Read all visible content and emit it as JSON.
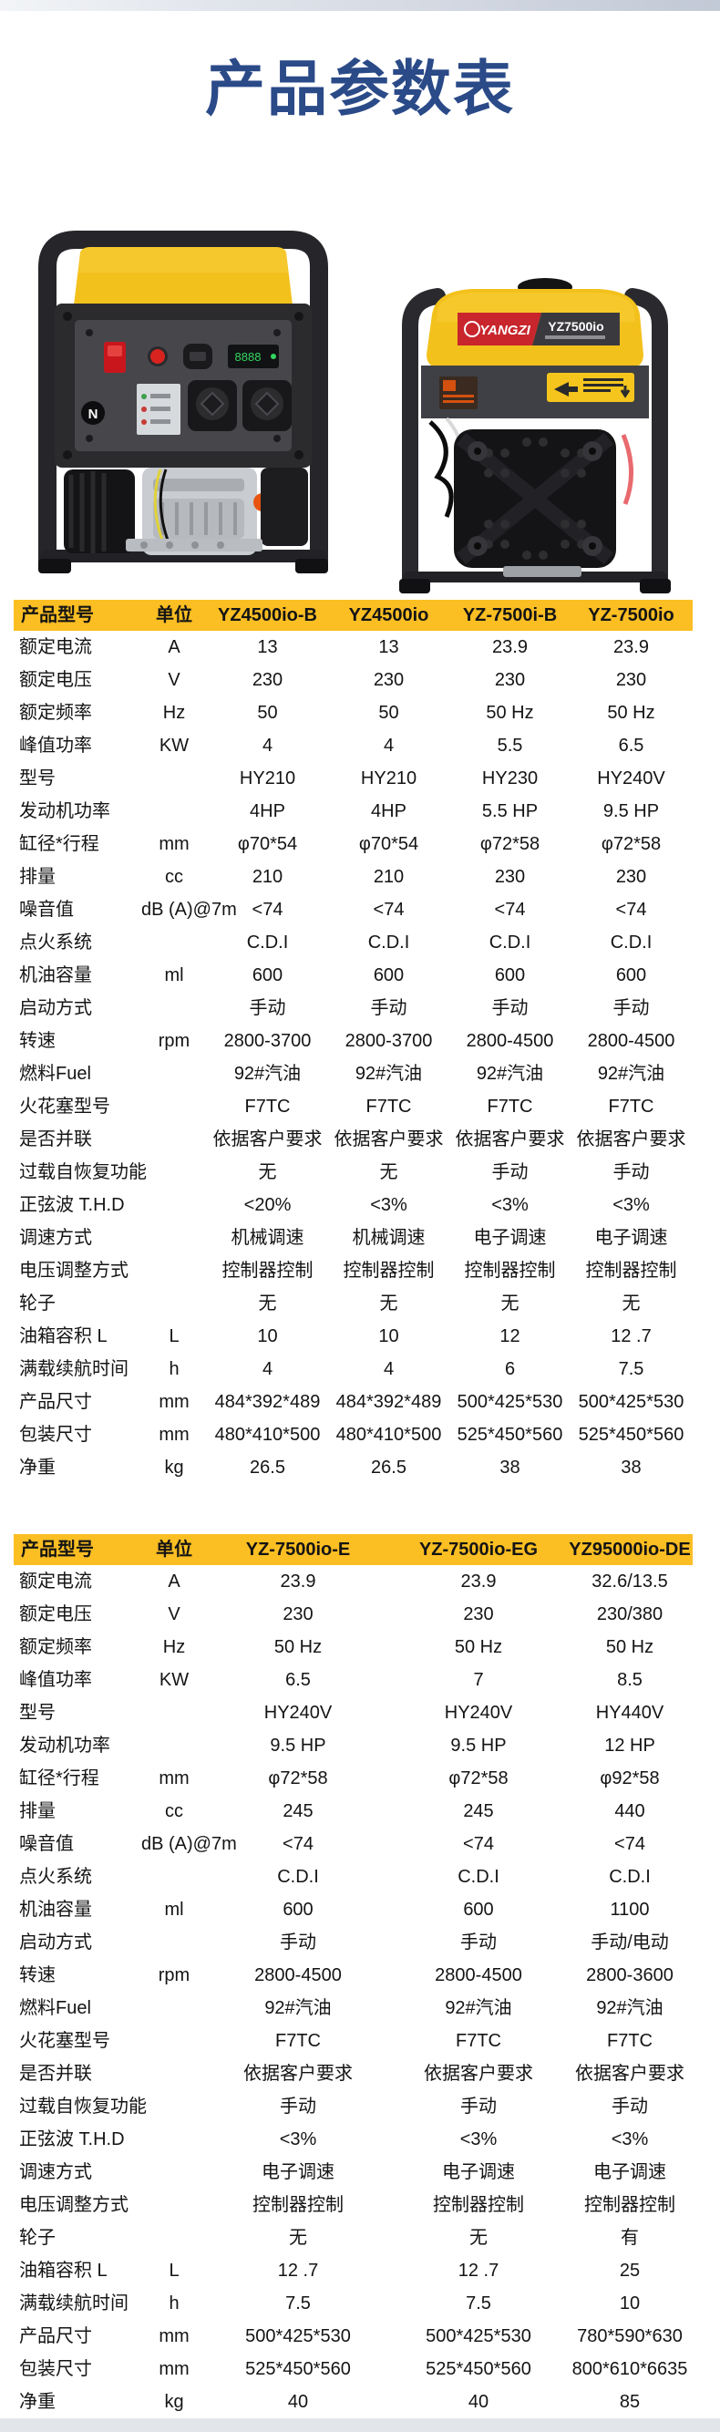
{
  "page": {
    "title": "产品参数表",
    "title_color": "#2a4a88",
    "header_accent_color": "#fbbe23",
    "machine_yellow": "#f3c11c"
  },
  "photos": {
    "front_view_name": "inverter-generator-front",
    "rear_view_name": "inverter-generator-rear",
    "rear_label_brand": "YANGZI",
    "rear_label_model": "YZ7500io",
    "meter_digits": "8888"
  },
  "table1": {
    "headers": [
      "产品型号",
      "单位",
      "YZ4500io-B",
      "YZ4500io",
      "YZ-7500i-B",
      "YZ-7500io"
    ],
    "rows": [
      {
        "label": "额定电流",
        "unit": "A",
        "values": [
          "13",
          "13",
          "23.9",
          "23.9"
        ]
      },
      {
        "label": "额定电压",
        "unit": "V",
        "values": [
          "230",
          "230",
          "230",
          "230"
        ]
      },
      {
        "label": "额定频率",
        "unit": "Hz",
        "values": [
          "50",
          "50",
          "50 Hz",
          "50 Hz"
        ]
      },
      {
        "label": "峰值功率",
        "unit": "KW",
        "values": [
          "4",
          "4",
          "5.5",
          "6.5"
        ]
      },
      {
        "label": "型号",
        "unit": "",
        "values": [
          "HY210",
          "HY210",
          "HY230",
          "HY240V"
        ]
      },
      {
        "label": "发动机功率",
        "unit": "",
        "values": [
          "4HP",
          "4HP",
          "5.5 HP",
          "9.5 HP"
        ]
      },
      {
        "label": "缸径*行程",
        "unit": "mm",
        "values": [
          "φ70*54",
          "φ70*54",
          "φ72*58",
          "φ72*58"
        ]
      },
      {
        "label": "排量",
        "unit": "cc",
        "values": [
          "210",
          "210",
          "230",
          "230"
        ]
      },
      {
        "label": "噪音值",
        "unit": "dB  (A)@7m",
        "values": [
          "<74",
          "<74",
          "<74",
          "<74"
        ]
      },
      {
        "label": "点火系统",
        "unit": "",
        "values": [
          "C.D.I",
          "C.D.I",
          "C.D.I",
          "C.D.I"
        ]
      },
      {
        "label": "机油容量",
        "unit": "ml",
        "values": [
          "600",
          "600",
          "600",
          "600"
        ]
      },
      {
        "label": "启动方式",
        "unit": "",
        "values": [
          "手动",
          "手动",
          "手动",
          "手动"
        ]
      },
      {
        "label": "转速",
        "unit": "rpm",
        "values": [
          "2800-3700",
          "2800-3700",
          "2800-4500",
          "2800-4500"
        ]
      },
      {
        "label": "燃料Fuel",
        "unit": "",
        "values": [
          "92#汽油",
          "92#汽油",
          "92#汽油",
          "92#汽油"
        ]
      },
      {
        "label": "火花塞型号",
        "unit": "",
        "values": [
          "F7TC",
          "F7TC",
          "F7TC",
          "F7TC"
        ]
      },
      {
        "label": "是否并联",
        "unit": "",
        "values": [
          "依据客户要求",
          "依据客户要求",
          "依据客户要求",
          "依据客户要求"
        ]
      },
      {
        "label": "过载自恢复功能",
        "unit": "",
        "values": [
          "无",
          "无",
          "手动",
          "手动"
        ]
      },
      {
        "label": "正弦波 T.H.D",
        "unit": "",
        "values": [
          "<20%",
          "<3%",
          "<3%",
          "<3%"
        ]
      },
      {
        "label": "调速方式",
        "unit": "",
        "values": [
          "机械调速",
          "机械调速",
          "电子调速",
          "电子调速"
        ]
      },
      {
        "label": "电压调整方式",
        "unit": "",
        "values": [
          "控制器控制",
          "控制器控制",
          "控制器控制",
          "控制器控制"
        ]
      },
      {
        "label": "轮子",
        "unit": "",
        "values": [
          "无",
          "无",
          "无",
          "无"
        ]
      },
      {
        "label": "油箱容积 L",
        "unit": "L",
        "values": [
          "10",
          "10",
          "12",
          "12 .7"
        ]
      },
      {
        "label": "满载续航时间",
        "unit": "h",
        "values": [
          "4",
          "4",
          "6",
          "7.5"
        ]
      },
      {
        "label": "产品尺寸",
        "unit": "mm",
        "values": [
          "484*392*489",
          "484*392*489",
          "500*425*530",
          "500*425*530"
        ]
      },
      {
        "label": "包装尺寸",
        "unit": "mm",
        "values": [
          "480*410*500",
          "480*410*500",
          "525*450*560",
          "525*450*560"
        ]
      },
      {
        "label": "净重",
        "unit": "kg",
        "values": [
          "26.5",
          "26.5",
          "38",
          "38"
        ]
      }
    ]
  },
  "table2": {
    "headers": [
      "产品型号",
      "单位",
      "YZ-7500io-E",
      "YZ-7500io-EG",
      "YZ95000io-DE"
    ],
    "rows": [
      {
        "label": "额定电流",
        "unit": "A",
        "values": [
          "23.9",
          "23.9",
          "32.6/13.5"
        ]
      },
      {
        "label": "额定电压",
        "unit": "V",
        "values": [
          "230",
          "230",
          "230/380"
        ]
      },
      {
        "label": "额定频率",
        "unit": "Hz",
        "values": [
          "50 Hz",
          "50 Hz",
          "50 Hz"
        ]
      },
      {
        "label": "峰值功率",
        "unit": "KW",
        "values": [
          "6.5",
          "7",
          "8.5"
        ]
      },
      {
        "label": "型号",
        "unit": "",
        "values": [
          "HY240V",
          "HY240V",
          "HY440V"
        ]
      },
      {
        "label": "发动机功率",
        "unit": "",
        "values": [
          "9.5 HP",
          "9.5 HP",
          "12 HP"
        ]
      },
      {
        "label": "缸径*行程",
        "unit": "mm",
        "values": [
          "φ72*58",
          "φ72*58",
          "φ92*58"
        ]
      },
      {
        "label": "排量",
        "unit": "cc",
        "values": [
          "245",
          "245",
          "440"
        ]
      },
      {
        "label": "噪音值",
        "unit": "dB  (A)@7m",
        "values": [
          "<74",
          "<74",
          "<74"
        ]
      },
      {
        "label": "点火系统",
        "unit": "",
        "values": [
          "C.D.I",
          "C.D.I",
          "C.D.I"
        ]
      },
      {
        "label": "机油容量",
        "unit": "ml",
        "values": [
          "600",
          "600",
          "1100"
        ]
      },
      {
        "label": "启动方式",
        "unit": "",
        "values": [
          "手动",
          "手动",
          "手动/电动"
        ]
      },
      {
        "label": "转速",
        "unit": "rpm",
        "values": [
          "2800-4500",
          "2800-4500",
          "2800-3600"
        ]
      },
      {
        "label": "燃料Fuel",
        "unit": "",
        "values": [
          "92#汽油",
          "92#汽油",
          "92#汽油"
        ]
      },
      {
        "label": "火花塞型号",
        "unit": "",
        "values": [
          "F7TC",
          "F7TC",
          "F7TC"
        ]
      },
      {
        "label": "是否并联",
        "unit": "",
        "values": [
          "依据客户要求",
          "依据客户要求",
          "依据客户要求"
        ]
      },
      {
        "label": "过载自恢复功能",
        "unit": "",
        "values": [
          "手动",
          "手动",
          "手动"
        ]
      },
      {
        "label": "正弦波 T.H.D",
        "unit": "",
        "values": [
          "<3%",
          "<3%",
          "<3%"
        ]
      },
      {
        "label": "调速方式",
        "unit": "",
        "values": [
          "电子调速",
          "电子调速",
          "电子调速"
        ]
      },
      {
        "label": "电压调整方式",
        "unit": "",
        "values": [
          "控制器控制",
          "控制器控制",
          "控制器控制"
        ]
      },
      {
        "label": "轮子",
        "unit": "",
        "values": [
          "无",
          "无",
          "有"
        ]
      },
      {
        "label": "油箱容积 L",
        "unit": "L",
        "values": [
          "12 .7",
          "12 .7",
          "25"
        ]
      },
      {
        "label": "满载续航时间",
        "unit": "h",
        "values": [
          "7.5",
          "7.5",
          "10"
        ]
      },
      {
        "label": "产品尺寸",
        "unit": "mm",
        "values": [
          "500*425*530",
          "500*425*530",
          "780*590*630"
        ]
      },
      {
        "label": "包装尺寸",
        "unit": "mm",
        "values": [
          "525*450*560",
          "525*450*560",
          "800*610*6635"
        ]
      },
      {
        "label": "净重",
        "unit": "kg",
        "values": [
          "40",
          "40",
          "85"
        ]
      }
    ]
  }
}
